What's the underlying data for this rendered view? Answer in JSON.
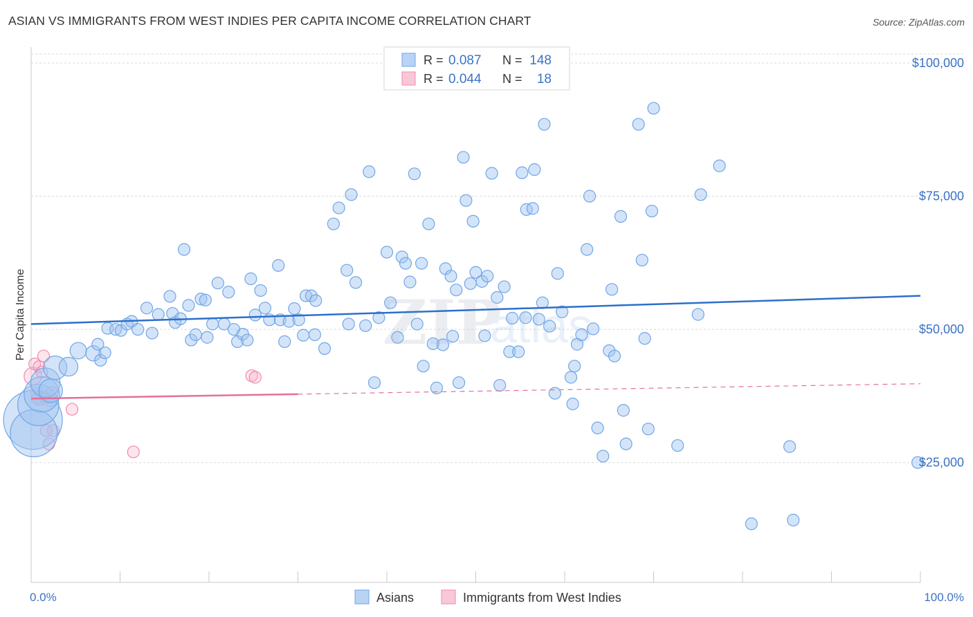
{
  "title": "ASIAN VS IMMIGRANTS FROM WEST INDIES PER CAPITA INCOME CORRELATION CHART",
  "source": "Source: ZipAtlas.com",
  "watermark": {
    "zip": "ZIP",
    "atlas": "atlas"
  },
  "colors": {
    "blue": "#6fa6e6",
    "blue_fill": "rgba(160,196,240,0.45)",
    "blue_line": "#2c6fcc",
    "pink": "#ee8aac",
    "pink_fill": "rgba(248,180,204,0.35)",
    "pink_line": "#e46f9a",
    "tick_label": "#3b73c6",
    "grid": "#d8d8d8"
  },
  "legend": {
    "r_label": "R =",
    "n_label": "N =",
    "rows": [
      {
        "r": "0.087",
        "n": "148"
      },
      {
        "r": "0.044",
        "n": "18"
      }
    ]
  },
  "bottom_legend": [
    "Asians",
    "Immigrants from West Indies"
  ],
  "chart_data": {
    "type": "scatter",
    "title": "ASIAN VS IMMIGRANTS FROM WEST INDIES PER CAPITA INCOME CORRELATION CHART",
    "ylabel": "Per Capita Income",
    "xlabel": "",
    "x_tick_labels": [
      "0.0%",
      "100.0%"
    ],
    "y_tick_labels": [
      "$25,000",
      "$50,000",
      "$75,000",
      "$100,000"
    ],
    "y_ticks": [
      25000,
      50000,
      75000,
      100000
    ],
    "xlim": [
      0,
      100
    ],
    "ylim": [
      2500,
      103000
    ],
    "grid": true,
    "legend_position": "top-center",
    "series": [
      {
        "name": "Asians",
        "r": 0.087,
        "n": 148,
        "trend": {
          "x": [
            0,
            100
          ],
          "y": [
            51000,
            56300
          ],
          "dashed_from": null
        },
        "points": [
          [
            0.2,
            33000,
            5
          ],
          [
            0.3,
            30500,
            4
          ],
          [
            0.8,
            35800,
            3.5
          ],
          [
            1.2,
            37800,
            3
          ],
          [
            1.6,
            40000,
            2.5
          ],
          [
            2.2,
            38500,
            2
          ],
          [
            2.7,
            42800,
            2
          ],
          [
            4.2,
            43000,
            1.6
          ],
          [
            5.3,
            46000,
            1.4
          ],
          [
            7.0,
            45500,
            1.3
          ],
          [
            7.5,
            47200,
            1
          ],
          [
            7.8,
            44200,
            1
          ],
          [
            8.3,
            45600,
            1
          ],
          [
            8.6,
            50200,
            1
          ],
          [
            9.5,
            50000,
            1
          ],
          [
            10.1,
            49800,
            1
          ],
          [
            10.8,
            51000,
            1
          ],
          [
            11.3,
            51500,
            1
          ],
          [
            12.0,
            50000,
            1
          ],
          [
            13.0,
            54000,
            1
          ],
          [
            13.6,
            49300,
            1
          ],
          [
            14.3,
            52800,
            1
          ],
          [
            15.6,
            56200,
            1
          ],
          [
            15.9,
            53000,
            1
          ],
          [
            16.2,
            51300,
            1
          ],
          [
            16.8,
            52000,
            1
          ],
          [
            17.2,
            65000,
            1
          ],
          [
            17.7,
            54500,
            1
          ],
          [
            18.0,
            48000,
            1
          ],
          [
            18.5,
            49000,
            1
          ],
          [
            19.1,
            55700,
            1
          ],
          [
            19.6,
            55500,
            1
          ],
          [
            19.8,
            48500,
            1
          ],
          [
            20.4,
            51000,
            1
          ],
          [
            21.0,
            58700,
            1
          ],
          [
            21.7,
            51000,
            1
          ],
          [
            22.2,
            57000,
            1
          ],
          [
            22.8,
            50000,
            1
          ],
          [
            23.2,
            47700,
            1
          ],
          [
            23.8,
            49100,
            1
          ],
          [
            24.3,
            48000,
            1
          ],
          [
            24.7,
            59500,
            1
          ],
          [
            25.2,
            52700,
            1
          ],
          [
            25.8,
            57300,
            1
          ],
          [
            26.3,
            54000,
            1
          ],
          [
            26.8,
            51800,
            1
          ],
          [
            27.8,
            62000,
            1
          ],
          [
            28.0,
            51800,
            1
          ],
          [
            28.5,
            47700,
            1
          ],
          [
            29.0,
            51500,
            1
          ],
          [
            29.6,
            53900,
            1
          ],
          [
            30.1,
            51800,
            1
          ],
          [
            30.6,
            48900,
            1
          ],
          [
            30.9,
            56300,
            1
          ],
          [
            31.5,
            56300,
            1
          ],
          [
            31.9,
            49000,
            1
          ],
          [
            32.0,
            55400,
            1
          ],
          [
            33.0,
            46400,
            1
          ],
          [
            34.0,
            69800,
            1
          ],
          [
            34.6,
            72800,
            1
          ],
          [
            35.5,
            61100,
            1
          ],
          [
            35.7,
            51000,
            1
          ],
          [
            36.0,
            75300,
            1
          ],
          [
            36.5,
            58800,
            1
          ],
          [
            37.6,
            50700,
            1
          ],
          [
            38.0,
            79600,
            1
          ],
          [
            38.6,
            40000,
            1
          ],
          [
            39.1,
            52200,
            1
          ],
          [
            40.0,
            64500,
            1
          ],
          [
            40.4,
            55000,
            1
          ],
          [
            41.2,
            48500,
            1
          ],
          [
            41.7,
            63600,
            1
          ],
          [
            42.1,
            62400,
            1
          ],
          [
            42.6,
            58900,
            1
          ],
          [
            43.1,
            79200,
            1
          ],
          [
            43.4,
            51000,
            1
          ],
          [
            43.9,
            62400,
            1
          ],
          [
            44.1,
            43100,
            1
          ],
          [
            44.7,
            69800,
            1
          ],
          [
            45.2,
            47300,
            1
          ],
          [
            45.6,
            39000,
            1
          ],
          [
            46.3,
            47100,
            1
          ],
          [
            46.6,
            61400,
            1
          ],
          [
            47.2,
            60000,
            1
          ],
          [
            47.4,
            48700,
            1
          ],
          [
            47.8,
            57400,
            1
          ],
          [
            48.1,
            40000,
            1
          ],
          [
            48.6,
            82300,
            1
          ],
          [
            48.9,
            74200,
            1
          ],
          [
            49.4,
            58600,
            1
          ],
          [
            49.7,
            70300,
            1
          ],
          [
            50.0,
            60700,
            1
          ],
          [
            50.7,
            59000,
            1
          ],
          [
            51.3,
            60000,
            1
          ],
          [
            51.0,
            48800,
            1
          ],
          [
            51.8,
            79300,
            1
          ],
          [
            52.4,
            56000,
            1
          ],
          [
            52.7,
            39500,
            1
          ],
          [
            53.2,
            58000,
            1
          ],
          [
            53.8,
            45800,
            1
          ],
          [
            54.1,
            52100,
            1
          ],
          [
            54.8,
            45800,
            1
          ],
          [
            55.2,
            79400,
            1
          ],
          [
            55.7,
            72500,
            1
          ],
          [
            55.6,
            52200,
            1
          ],
          [
            56.4,
            72700,
            1
          ],
          [
            56.6,
            80000,
            1
          ],
          [
            57.1,
            51900,
            1
          ],
          [
            57.5,
            55000,
            1
          ],
          [
            57.7,
            88500,
            1
          ],
          [
            58.3,
            50600,
            1
          ],
          [
            58.9,
            38000,
            1
          ],
          [
            59.2,
            60500,
            1
          ],
          [
            59.7,
            53300,
            1
          ],
          [
            60.7,
            41000,
            1
          ],
          [
            60.9,
            36000,
            1
          ],
          [
            61.1,
            43100,
            1
          ],
          [
            61.4,
            47200,
            1
          ],
          [
            61.9,
            49000,
            1
          ],
          [
            62.5,
            65000,
            1
          ],
          [
            62.8,
            75000,
            1
          ],
          [
            63.2,
            50100,
            1
          ],
          [
            63.7,
            31500,
            1
          ],
          [
            64.3,
            26200,
            1
          ],
          [
            65.0,
            46000,
            1
          ],
          [
            65.3,
            57500,
            1
          ],
          [
            65.6,
            45000,
            1
          ],
          [
            66.3,
            71200,
            1
          ],
          [
            66.6,
            34800,
            1
          ],
          [
            66.9,
            28500,
            1
          ],
          [
            68.3,
            88500,
            1
          ],
          [
            68.7,
            63000,
            1
          ],
          [
            69.0,
            48300,
            1
          ],
          [
            69.4,
            31300,
            1
          ],
          [
            69.8,
            72200,
            1
          ],
          [
            70.0,
            91500,
            1
          ],
          [
            72.7,
            28200,
            1
          ],
          [
            75.3,
            75300,
            1
          ],
          [
            75.0,
            52800,
            1
          ],
          [
            77.4,
            80700,
            1
          ],
          [
            81.0,
            13500,
            1
          ],
          [
            85.3,
            28000,
            1
          ],
          [
            85.7,
            14200,
            1
          ],
          [
            99.7,
            25000,
            1
          ]
        ]
      },
      {
        "name": "Immigrants from West Indies",
        "r": 0.044,
        "n": 18,
        "trend": {
          "x": [
            0,
            100
          ],
          "y": [
            37000,
            39800
          ],
          "dashed_from": 30
        },
        "points": [
          [
            0.2,
            41200,
            1.5
          ],
          [
            0.4,
            43500,
            1
          ],
          [
            0.6,
            38000,
            1
          ],
          [
            0.7,
            37100,
            1
          ],
          [
            0.9,
            43000,
            1
          ],
          [
            1.0,
            36800,
            1
          ],
          [
            1.2,
            42000,
            1
          ],
          [
            1.4,
            45000,
            1
          ],
          [
            1.6,
            37200,
            1
          ],
          [
            1.7,
            31000,
            1
          ],
          [
            2.0,
            28500,
            1
          ],
          [
            2.2,
            36600,
            1
          ],
          [
            2.4,
            38200,
            1
          ],
          [
            2.5,
            31000,
            1
          ],
          [
            4.6,
            35000,
            1
          ],
          [
            11.5,
            27000,
            1
          ],
          [
            24.8,
            41300,
            1
          ],
          [
            25.2,
            41000,
            1
          ]
        ]
      }
    ]
  }
}
